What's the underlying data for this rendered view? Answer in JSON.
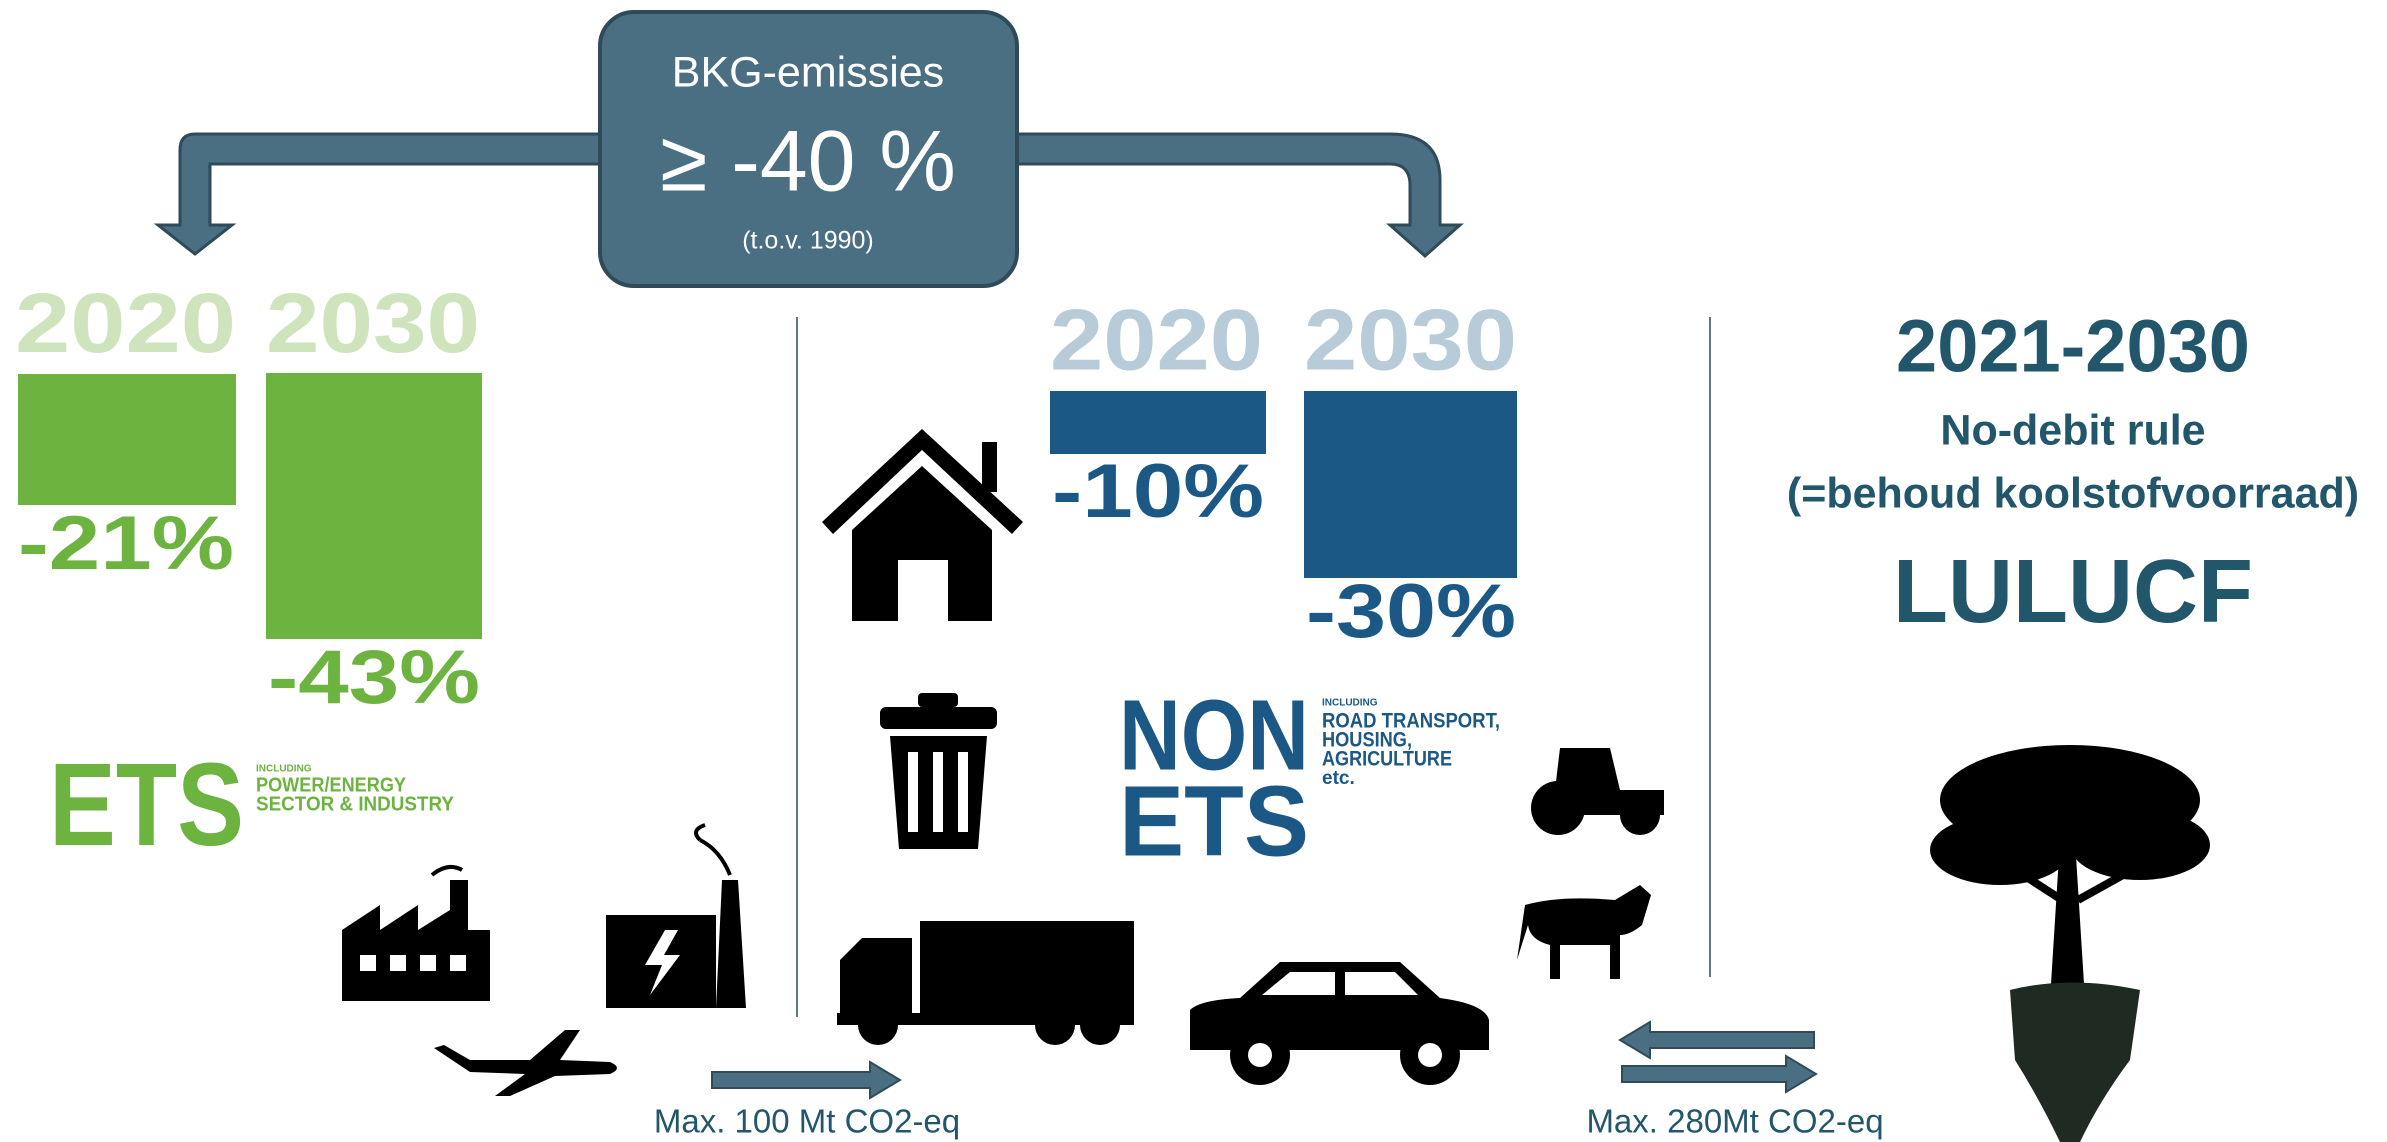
{
  "header": {
    "title": "BKG-emissies",
    "target": "≥ -40 %",
    "note": "(t.o.v. 1990)"
  },
  "ets": {
    "years": [
      "2020",
      "2030"
    ],
    "reductions": [
      "-21%",
      "-43%"
    ],
    "label": "ETS",
    "including": "INCLUDING",
    "scope": [
      "POWER/ENERGY",
      "SECTOR & INDUSTRY"
    ]
  },
  "non_ets": {
    "years": [
      "2020",
      "2030"
    ],
    "reductions": [
      "-10%",
      "-30%"
    ],
    "label": [
      "NON",
      "ETS"
    ],
    "including": "INCLUDING",
    "scope": [
      "ROAD TRANSPORT,",
      "HOUSING,",
      "AGRICULTURE",
      "etc."
    ]
  },
  "lulucf": {
    "period": "2021-2030",
    "rule": "No-debit rule",
    "rule_note": "(=behoud koolstofvoorraad)",
    "label": "LULUCF"
  },
  "flows": {
    "ets_to_non_ets": "Max. 100 Mt CO2-eq",
    "lulucf_exchange": "Max. 280Mt CO2-eq"
  }
}
